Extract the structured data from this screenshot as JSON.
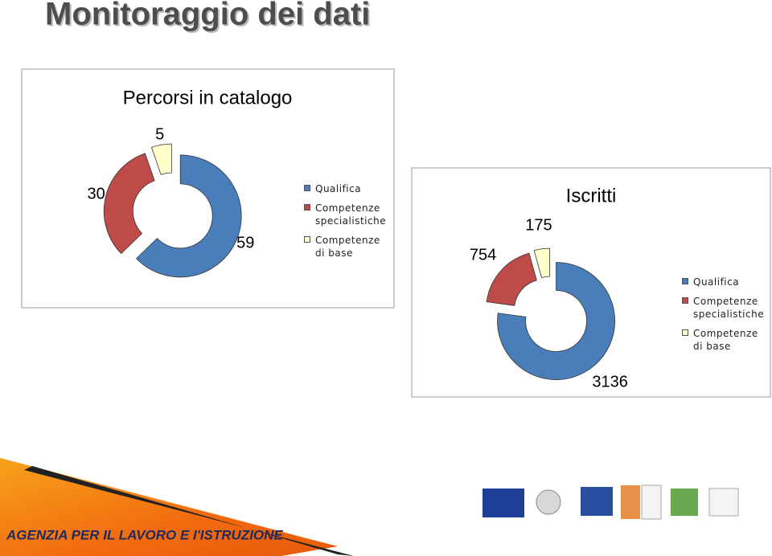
{
  "header": {
    "title": "Monitoraggio dei dati"
  },
  "chart_data": [
    {
      "type": "pie",
      "donut": true,
      "title": "Percorsi in catalogo",
      "categories": [
        "Qualifica",
        "Competenze specialistiche",
        "Competenze di base"
      ],
      "values": [
        59,
        30,
        5
      ],
      "colors": [
        "#4a7ebb",
        "#be4b48",
        "#ffffcc"
      ],
      "legend": "right"
    },
    {
      "type": "pie",
      "donut": true,
      "title": "Iscritti",
      "categories": [
        "Qualifica",
        "Competenze specialistiche",
        "Competenze di base"
      ],
      "values": [
        3136,
        754,
        175
      ],
      "colors": [
        "#4a7ebb",
        "#be4b48",
        "#ffffcc"
      ],
      "legend": "right"
    }
  ],
  "footer": {
    "text": "AGENZIA PER IL LAVORO E I'ISTRUZIONE"
  }
}
